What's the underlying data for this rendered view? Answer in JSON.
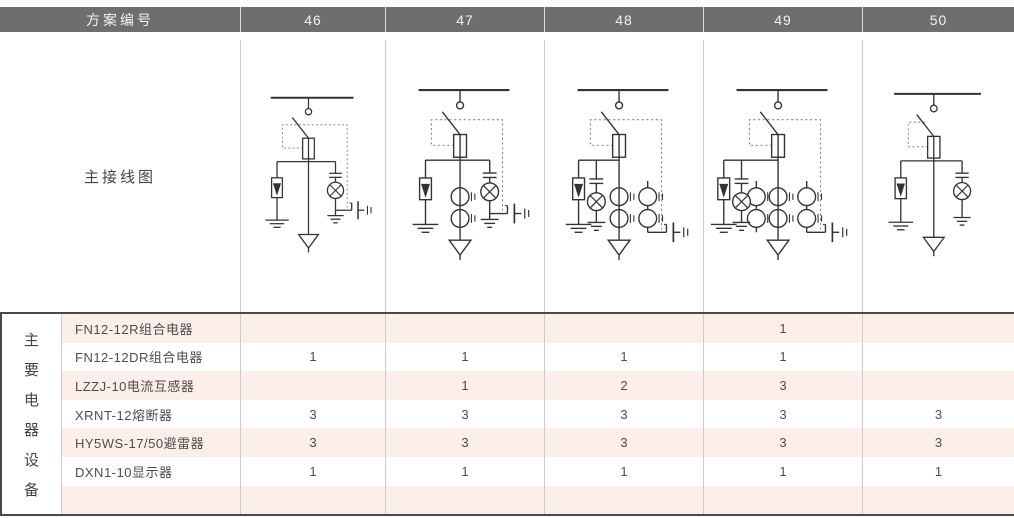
{
  "colors": {
    "header_bg": "#6e6e6e",
    "header_text": "#f2f2f2",
    "stripe": "#fcefe9",
    "divider": "#cccccc",
    "dark_border": "#4a4a4a",
    "text": "#4d4d4d",
    "line": "#333333"
  },
  "header": {
    "label": "方案编号",
    "schemes": [
      "46",
      "47",
      "48",
      "49",
      "50"
    ]
  },
  "diagram_row": {
    "label": "主接线图",
    "diagrams": [
      {
        "scheme": "46",
        "ct_pairs": 0,
        "lamp_side": "right",
        "cable_plug": true
      },
      {
        "scheme": "47",
        "ct_pairs": 1,
        "lamp_side": "right",
        "cable_plug": true
      },
      {
        "scheme": "48",
        "ct_pairs": 2,
        "lamp_side": "left",
        "cable_plug": true
      },
      {
        "scheme": "49",
        "ct_pairs": 3,
        "lamp_side": "left",
        "cable_plug": true
      },
      {
        "scheme": "50",
        "ct_pairs": 0,
        "lamp_side": "right",
        "cable_plug": false
      }
    ],
    "symbol_legend": [
      "busbar",
      "isolating-contact",
      "load-break-switch",
      "fuse",
      "surge-arrester",
      "earth",
      "charged-display-lamp",
      "current-transformer",
      "cable-plug",
      "feeder-arrow",
      "interlock-dotted-line"
    ]
  },
  "equipment_section": {
    "group_label": "主要电器设备",
    "rows": [
      {
        "name": "FN12-12R组合电器",
        "counts": [
          "",
          "",
          "",
          "1",
          ""
        ]
      },
      {
        "name": "FN12-12DR组合电器",
        "counts": [
          "1",
          "1",
          "1",
          "1",
          ""
        ]
      },
      {
        "name": "LZZJ-10电流互感器",
        "counts": [
          "",
          "1",
          "2",
          "3",
          ""
        ]
      },
      {
        "name": "XRNT-12熔断器",
        "counts": [
          "3",
          "3",
          "3",
          "3",
          "3"
        ]
      },
      {
        "name": "HY5WS-17/50避雷器",
        "counts": [
          "3",
          "3",
          "3",
          "3",
          "3"
        ]
      },
      {
        "name": "DXN1-10显示器",
        "counts": [
          "1",
          "1",
          "1",
          "1",
          "1"
        ]
      },
      {
        "name": "",
        "counts": [
          "",
          "",
          "",
          "",
          ""
        ]
      }
    ]
  }
}
